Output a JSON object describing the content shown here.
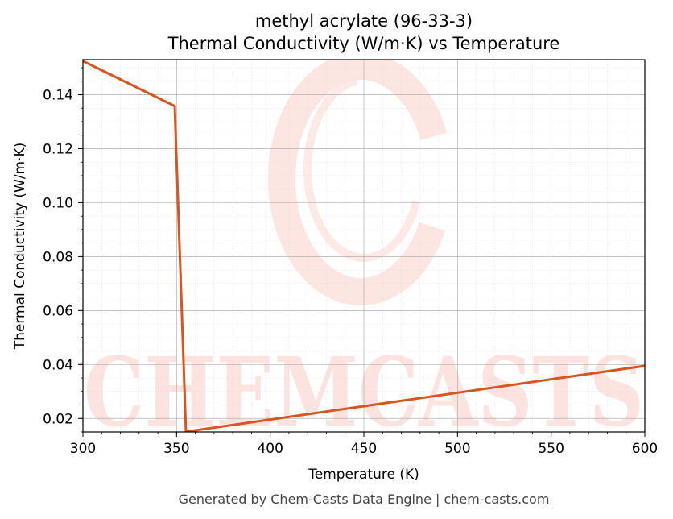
{
  "chart_data": {
    "type": "line",
    "title_line1": "methyl acrylate (96-33-3)",
    "title_line2": "Thermal Conductivity (W/m·K) vs Temperature",
    "xlabel": "Temperature (K)",
    "ylabel": "Thermal Conductivity (W/m·K)",
    "xlim": [
      300,
      600
    ],
    "ylim": [
      0.015,
      0.153
    ],
    "xticks": [
      300,
      350,
      400,
      450,
      500,
      550,
      600
    ],
    "yticks": [
      0.02,
      0.04,
      0.06,
      0.08,
      0.1,
      0.12,
      0.14
    ],
    "ytick_labels": [
      "0.02",
      "0.04",
      "0.06",
      "0.08",
      "0.10",
      "0.12",
      "0.14"
    ],
    "grid": true,
    "series": [
      {
        "color": "#d9541e",
        "x": [
          300,
          349,
          355,
          600
        ],
        "y": [
          0.1525,
          0.1358,
          0.0151,
          0.0395
        ]
      }
    ]
  },
  "watermark": {
    "text": "CHEMCASTS",
    "color": "#fde3df"
  },
  "footer": "Generated by Chem-Casts Data Engine | chem-casts.com"
}
